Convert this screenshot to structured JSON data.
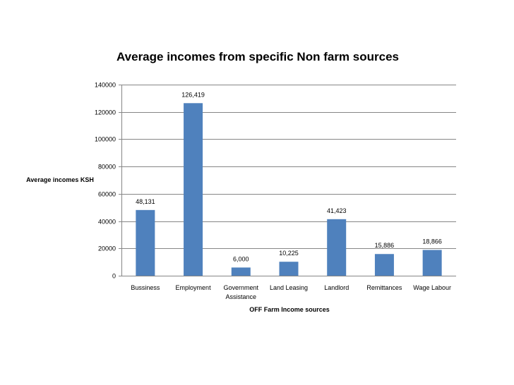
{
  "chart_data": {
    "type": "bar",
    "title": "Average incomes from specific Non farm sources",
    "xlabel": "OFF Farm Income sources",
    "ylabel": "Average incomes KSH",
    "categories": [
      [
        "Bussiness"
      ],
      [
        "Employment"
      ],
      [
        "Government",
        "Assistance"
      ],
      [
        "Land Leasing"
      ],
      [
        "Landlord"
      ],
      [
        "Remittances"
      ],
      [
        "Wage Labour"
      ]
    ],
    "values": [
      48131,
      126419,
      6000,
      10225,
      41423,
      15886,
      18866
    ],
    "value_labels": [
      "48,131",
      "126,419",
      "6,000",
      "10,225",
      "41,423",
      "15,886",
      "18,866"
    ],
    "ylim": [
      0,
      140000
    ],
    "yticks": [
      0,
      20000,
      40000,
      60000,
      80000,
      100000,
      120000,
      140000
    ],
    "ytick_labels": [
      "0",
      "20000",
      "40000",
      "60000",
      "80000",
      "100000",
      "120000",
      "140000"
    ],
    "grid": true,
    "legend": "none",
    "bar_color": "#4f81bd",
    "grid_color": "#868686"
  }
}
